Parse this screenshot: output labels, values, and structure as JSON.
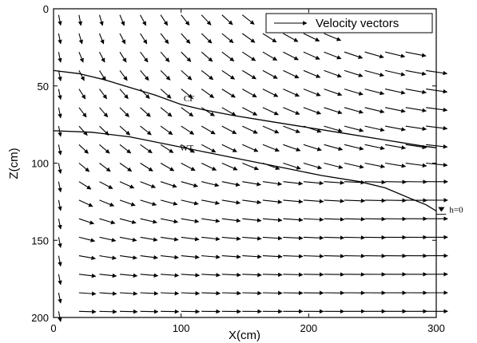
{
  "chart_data": {
    "type": "quiver",
    "xlabel": "X(cm)",
    "ylabel": "Z(cm)",
    "xlim": [
      0,
      300
    ],
    "ylim": [
      0,
      200
    ],
    "y_axis_inverted": true,
    "x_ticks": [
      "0",
      "100",
      "200",
      "300"
    ],
    "y_ticks": [
      "0",
      "50",
      "100",
      "150",
      "200"
    ],
    "legend": {
      "label": "Velocity vectors",
      "placement": "top-right"
    },
    "annotations": [
      {
        "text": "CF",
        "x": 102,
        "y": 60
      },
      {
        "text": "WT",
        "x": 99,
        "y": 92
      },
      {
        "text": "h=0",
        "x": 304,
        "y": 128
      }
    ],
    "series": [
      {
        "name": "CF",
        "points": [
          [
            0,
            40
          ],
          [
            20,
            42
          ],
          [
            40,
            46
          ],
          [
            60,
            51
          ],
          [
            80,
            56
          ],
          [
            100,
            62
          ],
          [
            115,
            65
          ],
          [
            140,
            69
          ],
          [
            170,
            73
          ],
          [
            200,
            77
          ],
          [
            230,
            81
          ],
          [
            260,
            85
          ],
          [
            290,
            89
          ],
          [
            300,
            90
          ]
        ]
      },
      {
        "name": "WT",
        "points": [
          [
            0,
            79
          ],
          [
            30,
            80
          ],
          [
            60,
            83
          ],
          [
            90,
            88
          ],
          [
            120,
            93
          ],
          [
            150,
            98
          ],
          [
            180,
            103
          ],
          [
            210,
            108
          ],
          [
            240,
            112
          ],
          [
            260,
            116
          ],
          [
            280,
            123
          ],
          [
            292,
            127
          ],
          [
            300,
            131
          ]
        ]
      }
    ],
    "velocity_field": {
      "x_positions": [
        4,
        20,
        36,
        52,
        68,
        84,
        100,
        116,
        132,
        148,
        164,
        180,
        196,
        212,
        228,
        244,
        260,
        276,
        292
      ],
      "z_positions": [
        4,
        16,
        28,
        40,
        52,
        64,
        76,
        88,
        100,
        112,
        124,
        136,
        148,
        160,
        172,
        184,
        196
      ]
    }
  }
}
